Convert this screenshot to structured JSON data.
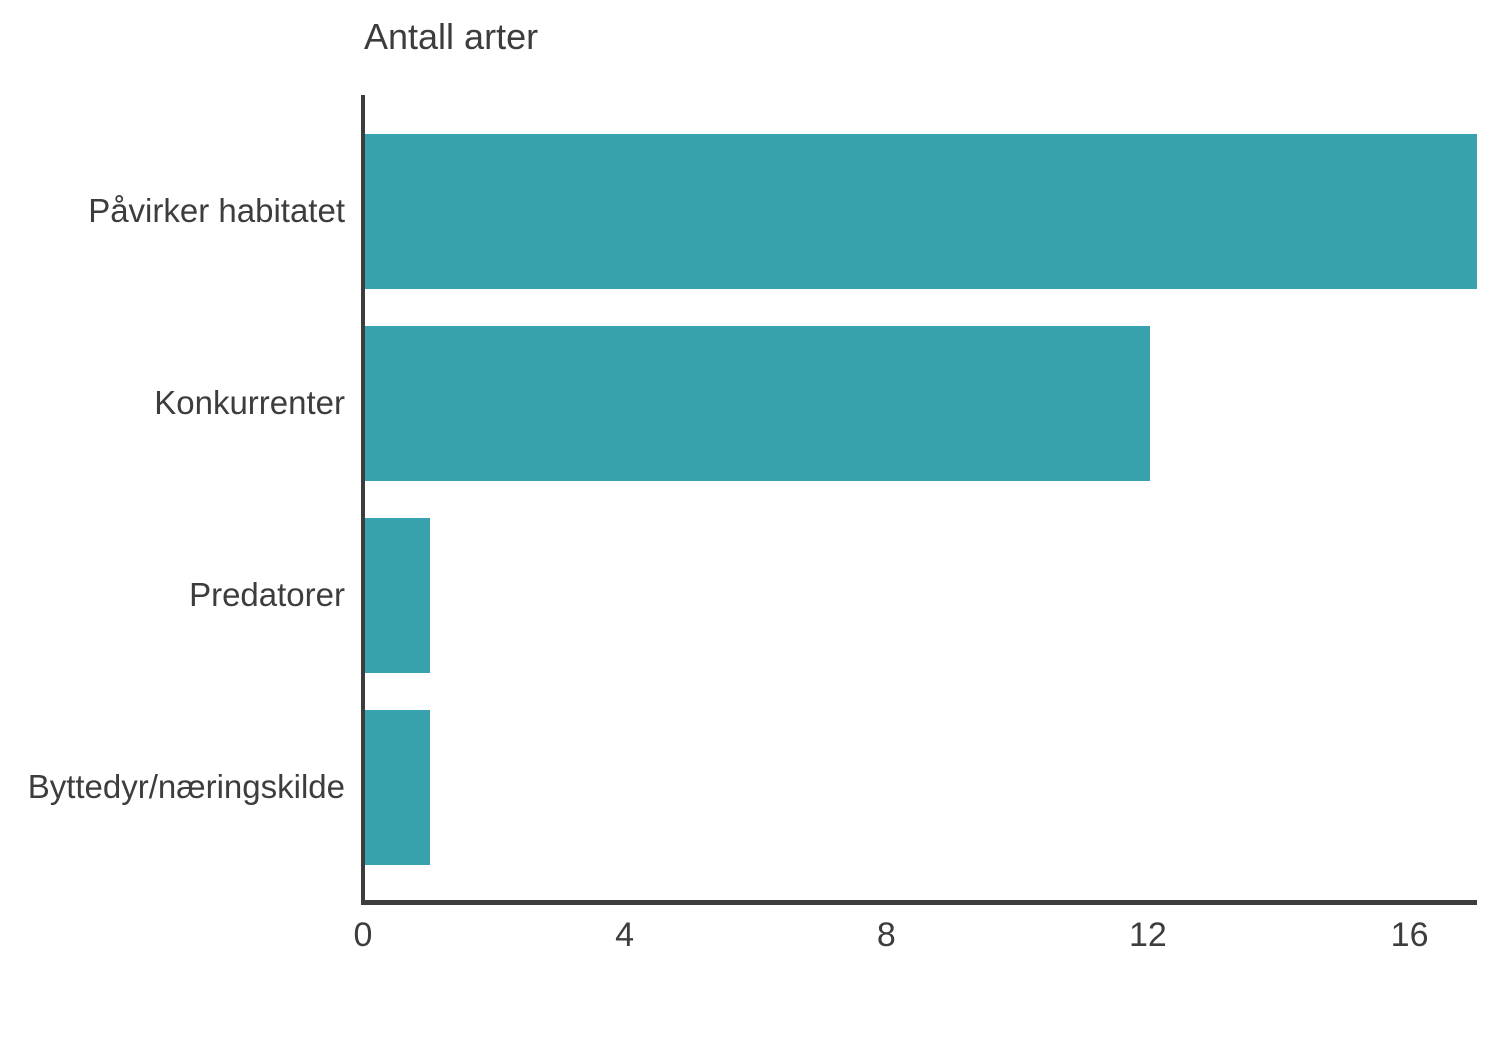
{
  "title": "Antall arter",
  "colors": {
    "bar": "#37a1ae",
    "axis": "#3d3d3d",
    "text": "#3d3d3d",
    "background": "#ffffff"
  },
  "chart_data": {
    "type": "bar",
    "orientation": "horizontal",
    "title": "Antall arter",
    "categories": [
      "Påvirker habitatet",
      "Konkurrenter",
      "Predatorer",
      "Byttedyr/næringskilde"
    ],
    "values": [
      17,
      12,
      1,
      1
    ],
    "xlabel": "",
    "ylabel": "",
    "xlim": [
      0,
      17
    ],
    "xticks": [
      0,
      4,
      8,
      12,
      16
    ],
    "grid": false,
    "legend": false
  }
}
